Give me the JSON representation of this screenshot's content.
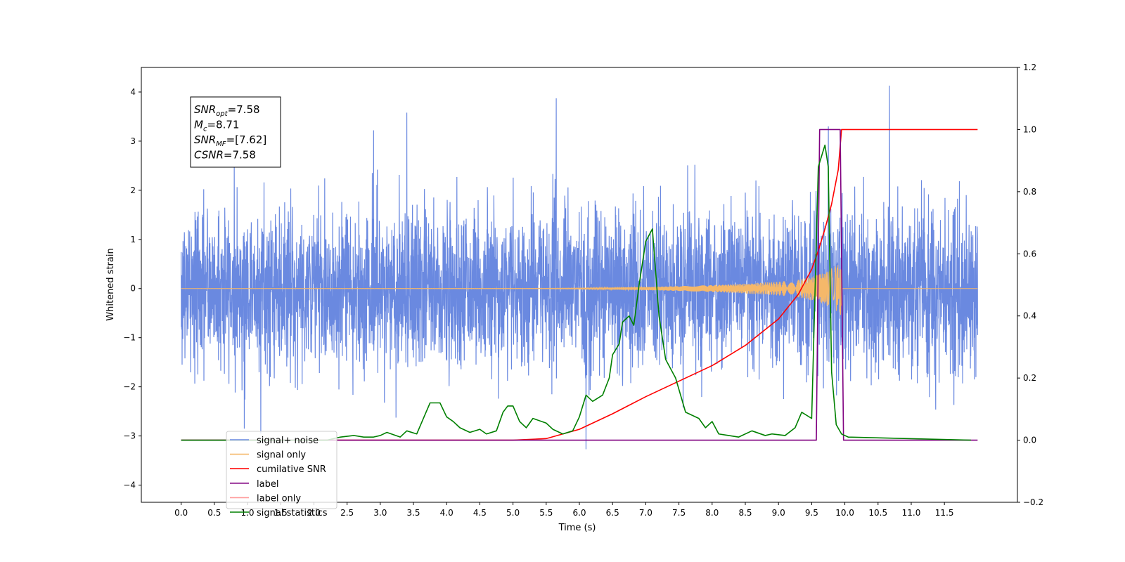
{
  "chart_data": {
    "type": "line",
    "title": "",
    "xlabel": "Time (s)",
    "ylabel": "Whitened strain",
    "xlim": [
      -0.6,
      12.6
    ],
    "ylim": [
      -4.35,
      4.5
    ],
    "y2lim": [
      -0.2,
      1.2
    ],
    "x_ticks": [
      0.0,
      0.5,
      1.0,
      1.5,
      2.0,
      2.5,
      3.0,
      3.5,
      4.0,
      4.5,
      5.0,
      5.5,
      6.0,
      6.5,
      7.0,
      7.5,
      8.0,
      8.5,
      9.0,
      9.5,
      10.0,
      10.5,
      11.0,
      11.5
    ],
    "x_tick_labels": [
      "0.0",
      "0.5",
      "1.0",
      "1.5",
      "2.0",
      "2.5",
      "3.0",
      "3.5",
      "4.0",
      "4.5",
      "5.0",
      "5.5",
      "6.0",
      "6.5",
      "7.0",
      "7.5",
      "8.0",
      "8.5",
      "9.0",
      "9.5",
      "10.0",
      "10.5",
      "11.0",
      "11.5"
    ],
    "y_ticks": [
      -4,
      -3,
      -2,
      -1,
      0,
      1,
      2,
      3,
      4
    ],
    "y_tick_labels": [
      "−4",
      "−3",
      "−2",
      "−1",
      "0",
      "1",
      "2",
      "3",
      "4"
    ],
    "y2_ticks": [
      -0.2,
      0.0,
      0.2,
      0.4,
      0.6,
      0.8,
      1.0,
      1.2
    ],
    "y2_tick_labels": [
      "−0.2",
      "0.0",
      "0.2",
      "0.4",
      "0.6",
      "0.8",
      "1.0",
      "1.2"
    ],
    "grid": false,
    "legend_position": "bottom-left",
    "annotation": {
      "lines": [
        {
          "base": "SNR",
          "sub": "opt",
          "rest": "=7.58"
        },
        {
          "base": "M",
          "sub": "c",
          "rest": "=8.71"
        },
        {
          "base": "SNR",
          "sub": "MF",
          "rest": "=[7.62]"
        },
        {
          "base": "CSNR",
          "sub": "",
          "rest": "=7.58"
        }
      ]
    },
    "series": [
      {
        "name": "signal+ noise",
        "color": "#6a89e0",
        "axis": "left",
        "kind": "noise",
        "x_range": [
          0.0,
          12.0
        ],
        "approx_std": 0.8,
        "spikes": [
          {
            "x": 3.4,
            "y": 3.58
          },
          {
            "x": 5.65,
            "y": 3.87
          },
          {
            "x": 10.67,
            "y": 4.13
          },
          {
            "x": 2.9,
            "y": 3.22
          },
          {
            "x": 9.75,
            "y": 3.3
          },
          {
            "x": 6.1,
            "y": -3.27
          },
          {
            "x": 1.2,
            "y": -2.95
          },
          {
            "x": 0.95,
            "y": -2.85
          }
        ]
      },
      {
        "name": "signal only",
        "color": "#f5b86a",
        "axis": "left",
        "kind": "chirp",
        "x_range": [
          0.0,
          12.0
        ],
        "merger_time": 9.95,
        "envelope": {
          "x": [
            0.0,
            5.5,
            6.0,
            6.5,
            7.0,
            7.5,
            8.0,
            8.5,
            9.0,
            9.3,
            9.5,
            9.7,
            9.85,
            9.95,
            9.96,
            12.0
          ],
          "amp": [
            0.0,
            0.005,
            0.01,
            0.02,
            0.03,
            0.05,
            0.07,
            0.1,
            0.14,
            0.18,
            0.24,
            0.33,
            0.45,
            0.55,
            0.0,
            0.0
          ]
        }
      },
      {
        "name": "cumilative SNR",
        "color": "#ff0000",
        "axis": "right",
        "x": [
          0.0,
          5.0,
          5.5,
          6.0,
          6.5,
          7.0,
          7.5,
          8.0,
          8.5,
          9.0,
          9.3,
          9.5,
          9.6,
          9.7,
          9.8,
          9.9,
          9.95,
          12.0
        ],
        "values": [
          0.0,
          0.0,
          0.005,
          0.035,
          0.085,
          0.14,
          0.19,
          0.24,
          0.305,
          0.39,
          0.47,
          0.55,
          0.61,
          0.68,
          0.76,
          0.87,
          1.0,
          1.0
        ]
      },
      {
        "name": "label",
        "color": "#800080",
        "axis": "right",
        "x": [
          0.0,
          9.57,
          9.62,
          9.93,
          9.98,
          12.0
        ],
        "values": [
          0.0,
          0.0,
          1.0,
          1.0,
          0.0,
          0.0
        ]
      },
      {
        "name": "label only",
        "color": "#ff9999",
        "axis": "right",
        "x": [],
        "values": []
      },
      {
        "name": "signal statistics",
        "color": "#008000",
        "axis": "right",
        "x": [
          0.0,
          2.2,
          2.4,
          2.6,
          2.75,
          2.9,
          3.0,
          3.1,
          3.3,
          3.4,
          3.55,
          3.65,
          3.75,
          3.9,
          4.0,
          4.1,
          4.2,
          4.35,
          4.5,
          4.6,
          4.75,
          4.85,
          4.92,
          5.0,
          5.1,
          5.2,
          5.3,
          5.5,
          5.6,
          5.75,
          5.9,
          6.0,
          6.1,
          6.2,
          6.35,
          6.45,
          6.5,
          6.6,
          6.65,
          6.75,
          6.82,
          6.9,
          7.0,
          7.1,
          7.2,
          7.3,
          7.35,
          7.45,
          7.6,
          7.8,
          7.9,
          8.0,
          8.1,
          8.25,
          8.4,
          8.6,
          8.8,
          8.9,
          9.1,
          9.25,
          9.35,
          9.5,
          9.6,
          9.7,
          9.75,
          9.8,
          9.87,
          9.95,
          10.05,
          11.9
        ],
        "values": [
          0.0,
          0.0,
          0.01,
          0.015,
          0.01,
          0.01,
          0.015,
          0.025,
          0.01,
          0.03,
          0.02,
          0.07,
          0.12,
          0.12,
          0.075,
          0.06,
          0.04,
          0.025,
          0.035,
          0.02,
          0.03,
          0.09,
          0.11,
          0.11,
          0.06,
          0.04,
          0.07,
          0.055,
          0.035,
          0.02,
          0.03,
          0.075,
          0.145,
          0.125,
          0.145,
          0.2,
          0.275,
          0.31,
          0.38,
          0.4,
          0.37,
          0.5,
          0.64,
          0.68,
          0.4,
          0.26,
          0.24,
          0.2,
          0.09,
          0.07,
          0.04,
          0.06,
          0.02,
          0.015,
          0.01,
          0.03,
          0.015,
          0.02,
          0.015,
          0.04,
          0.09,
          0.07,
          0.88,
          0.95,
          0.88,
          0.22,
          0.05,
          0.02,
          0.01,
          0.0
        ]
      }
    ]
  }
}
